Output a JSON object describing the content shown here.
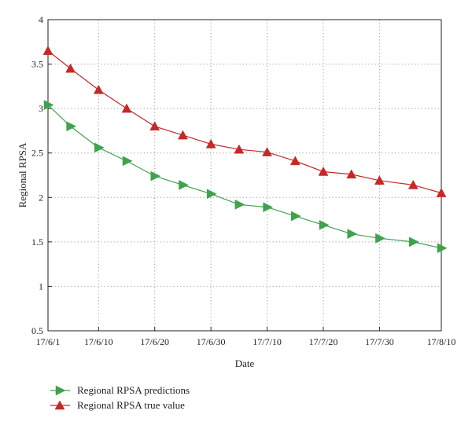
{
  "chart_data": {
    "type": "line",
    "xlabel": "Date",
    "ylabel": "Regional RPSA",
    "ylim": [
      0.5,
      4
    ],
    "yticks": [
      0.5,
      1,
      1.5,
      2,
      2.5,
      3,
      3.5,
      4
    ],
    "xticks": [
      "17/6/1",
      "17/6/10",
      "17/6/20",
      "17/6/30",
      "17/7/10",
      "17/7/20",
      "17/7/30",
      "17/8/10"
    ],
    "x": [
      "17/6/1",
      "17/6/5",
      "17/6/10",
      "17/6/15",
      "17/6/20",
      "17/6/25",
      "17/6/30",
      "17/7/5",
      "17/7/10",
      "17/7/15",
      "17/7/20",
      "17/7/25",
      "17/7/30",
      "17/8/5",
      "17/8/10"
    ],
    "grid": true,
    "legend_position": "bottom-left",
    "series": [
      {
        "name": "Regional RPSA predictions",
        "color": "#3fa34d",
        "marker": "triangle-right",
        "values": [
          3.04,
          2.8,
          2.56,
          2.41,
          2.24,
          2.14,
          2.04,
          1.92,
          1.89,
          1.79,
          1.69,
          1.59,
          1.54,
          1.5,
          1.43
        ]
      },
      {
        "name": "Regional RPSA true value",
        "color": "#c62828",
        "marker": "triangle-up",
        "values": [
          3.65,
          3.45,
          3.21,
          3.0,
          2.8,
          2.7,
          2.6,
          2.54,
          2.51,
          2.41,
          2.29,
          2.26,
          2.19,
          2.14,
          2.05
        ]
      }
    ]
  }
}
